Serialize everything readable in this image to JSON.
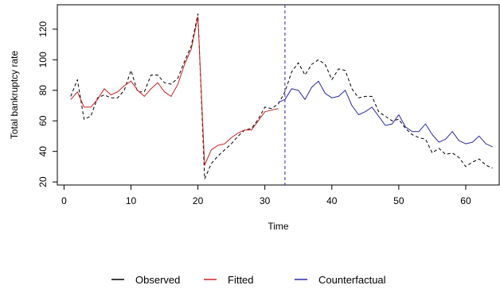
{
  "chart_data": {
    "type": "line",
    "title": "",
    "xlabel": "Time",
    "ylabel": "Total bankruptcy rate",
    "xlim": [
      -1,
      65
    ],
    "ylim": [
      18,
      136
    ],
    "xticks": [
      0,
      10,
      20,
      30,
      40,
      50,
      60
    ],
    "yticks": [
      20,
      40,
      60,
      80,
      100,
      120
    ],
    "grid": false,
    "legend_position": "bottom",
    "intervention_time": 33,
    "colors": {
      "observed": "#000000",
      "fitted": "#cc2222",
      "counterfactual": "#2a2aa8",
      "intervention_line": "#2a2aa8"
    },
    "series": [
      {
        "name": "Observed",
        "style": "dashed",
        "x": [
          1,
          2,
          3,
          4,
          5,
          6,
          7,
          8,
          9,
          10,
          11,
          12,
          13,
          14,
          15,
          16,
          17,
          18,
          19,
          20,
          21,
          22,
          23,
          24,
          25,
          26,
          27,
          28,
          29,
          30,
          31,
          32,
          33,
          34,
          35,
          36,
          37,
          38,
          39,
          40,
          41,
          42,
          43,
          44,
          45,
          46,
          47,
          48,
          49,
          50,
          51,
          52,
          53,
          54,
          55,
          56,
          57,
          58,
          59,
          60,
          61,
          62,
          63,
          64
        ],
        "y": [
          76,
          87,
          61,
          63,
          75,
          77,
          75,
          75,
          80,
          93,
          79,
          79,
          90,
          90,
          85,
          84,
          88,
          99,
          109,
          130,
          22,
          32,
          37,
          41,
          45,
          50,
          54,
          55,
          61,
          69,
          68,
          71,
          79,
          92,
          98,
          90,
          97,
          100,
          97,
          87,
          94,
          93,
          81,
          75,
          76,
          76,
          66,
          63,
          60,
          61,
          55,
          51,
          49,
          48,
          39,
          42,
          38,
          39,
          36,
          30,
          33,
          35,
          31,
          29
        ]
      },
      {
        "name": "Fitted",
        "style": "solid",
        "x": [
          1,
          2,
          3,
          4,
          5,
          6,
          7,
          8,
          9,
          10,
          11,
          12,
          13,
          14,
          15,
          16,
          17,
          18,
          19,
          20,
          21,
          22,
          23,
          24,
          25,
          26,
          27,
          28,
          29,
          30,
          31,
          32
        ],
        "y": [
          74,
          79,
          69,
          69,
          74,
          81,
          77,
          79,
          83,
          86,
          80,
          76,
          81,
          85,
          79,
          76,
          84,
          97,
          107,
          128,
          31,
          41,
          44,
          45,
          49,
          52,
          54,
          54,
          60,
          66,
          67,
          68
        ]
      },
      {
        "name": "Counterfactual",
        "style": "solid",
        "x": [
          32,
          33,
          34,
          35,
          36,
          37,
          38,
          39,
          40,
          41,
          42,
          43,
          44,
          45,
          46,
          47,
          48,
          49,
          50,
          51,
          52,
          53,
          54,
          55,
          56,
          57,
          58,
          59,
          60,
          61,
          62,
          63,
          64
        ],
        "y": [
          72,
          74,
          81,
          80,
          74,
          82,
          86,
          78,
          75,
          76,
          80,
          70,
          64,
          66,
          69,
          63,
          57,
          58,
          64,
          56,
          53,
          53,
          58,
          51,
          46,
          48,
          53,
          47,
          45,
          46,
          50,
          45,
          43
        ]
      }
    ]
  }
}
